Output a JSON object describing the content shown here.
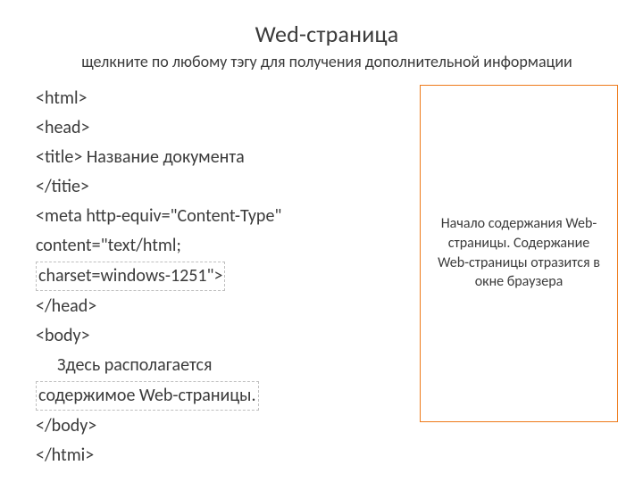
{
  "title": "Wed-страница",
  "subtitle": "щелкните по любому тэгу для получения дополнительной информации",
  "code": {
    "l1": "<html>",
    "l2": "<head>",
    "l3a": "<title> ",
    "l3b_label": "Название документа",
    "l4": "</titie>",
    "l5": "<meta http-equiv=\"Content-Type\" content=\"text/html; charset=windows-1251\">",
    "l5_visible_1": "<meta http-equiv=\"Content-Type\"",
    "l5_visible_2": "content=\"text/html;",
    "l5_visible_3": "charset=windows-1251\">",
    "l6": "</head>",
    "l7": "<body>",
    "l8a": "Здесь располагается",
    "l8b": "содержимое Web-страницы.",
    "l9": "</body>",
    "l10": "</htmi>"
  },
  "info_box_text": "Начало содержания Web-страницы. Содержание Web-страницы отразится в окне браузера",
  "colors": {
    "box_border": "#ee7a1a",
    "text": "#3b3b3b",
    "background": "#ffffff",
    "dashed": "#bfbfbf"
  }
}
